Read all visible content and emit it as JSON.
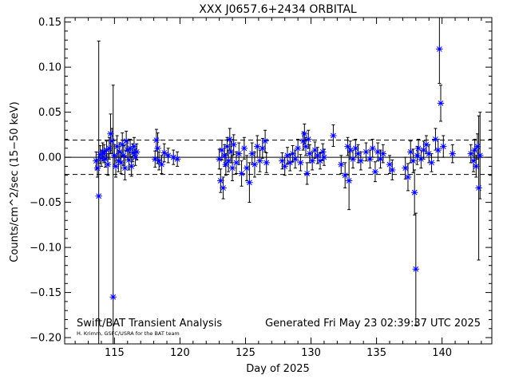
{
  "chart_data": {
    "type": "scatter",
    "title": "XXX J0657.6+2434 ORBITAL",
    "xlabel": "Day of 2025",
    "ylabel": "Counts/cm^2/sec (15−50 keV)",
    "xlim": [
      111.2,
      143.8
    ],
    "ylim": [
      -0.207,
      0.155
    ],
    "x_ticks": [
      115,
      120,
      125,
      130,
      135,
      140
    ],
    "y_ticks": [
      -0.2,
      -0.15,
      -0.1,
      -0.05,
      0.0,
      0.05,
      0.1,
      0.15
    ],
    "y_tick_labels": [
      "−0.20",
      "−0.15",
      "−0.10",
      "−0.05",
      "0.00",
      "0.05",
      "0.10",
      "0.15"
    ],
    "reference_lines": [
      {
        "y": 0.0,
        "style": "solid"
      },
      {
        "y": 0.019,
        "style": "dashed"
      },
      {
        "y": -0.019,
        "style": "dashed"
      }
    ],
    "marker": "asterisk",
    "marker_color": "#0000ff",
    "grid": false,
    "footer_left": "Swift/BAT Transient Analysis",
    "footer_left_small": "H. Krimm, GSFC/USRA for the BAT team",
    "footer_right": "Generated Fri May 23 02:39:37 UTC 2025",
    "points": [
      {
        "x": 113.6,
        "y": -0.004,
        "err": 0.01
      },
      {
        "x": 113.7,
        "y": -0.012,
        "err": 0.01
      },
      {
        "x": 113.8,
        "y": -0.043,
        "err": 0.172
      },
      {
        "x": 113.9,
        "y": 0.003,
        "err": 0.01
      },
      {
        "x": 114.0,
        "y": -0.001,
        "err": 0.009
      },
      {
        "x": 114.1,
        "y": 0.006,
        "err": 0.01
      },
      {
        "x": 114.2,
        "y": 0.004,
        "err": 0.01
      },
      {
        "x": 114.3,
        "y": -0.002,
        "err": 0.009
      },
      {
        "x": 114.4,
        "y": 0.008,
        "err": 0.01
      },
      {
        "x": 114.5,
        "y": -0.008,
        "err": 0.012
      },
      {
        "x": 114.6,
        "y": 0.01,
        "err": 0.012
      },
      {
        "x": 114.7,
        "y": 0.026,
        "err": 0.022
      },
      {
        "x": 114.8,
        "y": 0.018,
        "err": 0.014
      },
      {
        "x": 114.9,
        "y": -0.155,
        "err": 0.235
      },
      {
        "x": 115.0,
        "y": 0.002,
        "err": 0.012
      },
      {
        "x": 115.1,
        "y": -0.01,
        "err": 0.012
      },
      {
        "x": 115.2,
        "y": 0.012,
        "err": 0.012
      },
      {
        "x": 115.3,
        "y": -0.004,
        "err": 0.012
      },
      {
        "x": 115.4,
        "y": 0.006,
        "err": 0.01
      },
      {
        "x": 115.5,
        "y": -0.006,
        "err": 0.012
      },
      {
        "x": 115.6,
        "y": 0.014,
        "err": 0.013
      },
      {
        "x": 115.7,
        "y": 0.002,
        "err": 0.011
      },
      {
        "x": 115.8,
        "y": -0.012,
        "err": 0.013
      },
      {
        "x": 115.9,
        "y": 0.018,
        "err": 0.011
      },
      {
        "x": 116.0,
        "y": 0.008,
        "err": 0.011
      },
      {
        "x": 116.1,
        "y": -0.003,
        "err": 0.011
      },
      {
        "x": 116.2,
        "y": 0.01,
        "err": 0.01
      },
      {
        "x": 116.3,
        "y": -0.01,
        "err": 0.011
      },
      {
        "x": 116.4,
        "y": 0.005,
        "err": 0.01
      },
      {
        "x": 116.5,
        "y": 0.012,
        "err": 0.01
      },
      {
        "x": 116.6,
        "y": 0.0,
        "err": 0.009
      },
      {
        "x": 116.7,
        "y": 0.006,
        "err": 0.009
      },
      {
        "x": 118.1,
        "y": -0.002,
        "err": 0.009
      },
      {
        "x": 118.2,
        "y": 0.019,
        "err": 0.012
      },
      {
        "x": 118.3,
        "y": 0.01,
        "err": 0.017
      },
      {
        "x": 118.4,
        "y": -0.004,
        "err": 0.01
      },
      {
        "x": 118.6,
        "y": -0.008,
        "err": 0.01
      },
      {
        "x": 118.8,
        "y": 0.005,
        "err": 0.01
      },
      {
        "x": 119.1,
        "y": 0.002,
        "err": 0.008
      },
      {
        "x": 119.5,
        "y": 0.0,
        "err": 0.008
      },
      {
        "x": 119.8,
        "y": -0.002,
        "err": 0.008
      },
      {
        "x": 123.0,
        "y": -0.002,
        "err": 0.011
      },
      {
        "x": 123.1,
        "y": -0.026,
        "err": 0.013
      },
      {
        "x": 123.2,
        "y": 0.008,
        "err": 0.011
      },
      {
        "x": 123.3,
        "y": -0.034,
        "err": 0.012
      },
      {
        "x": 123.4,
        "y": 0.002,
        "err": 0.012
      },
      {
        "x": 123.5,
        "y": -0.008,
        "err": 0.012
      },
      {
        "x": 123.6,
        "y": 0.012,
        "err": 0.01
      },
      {
        "x": 123.7,
        "y": -0.004,
        "err": 0.012
      },
      {
        "x": 123.8,
        "y": 0.02,
        "err": 0.012
      },
      {
        "x": 123.9,
        "y": 0.006,
        "err": 0.012
      },
      {
        "x": 124.0,
        "y": -0.012,
        "err": 0.014
      },
      {
        "x": 124.1,
        "y": 0.014,
        "err": 0.011
      },
      {
        "x": 124.3,
        "y": -0.006,
        "err": 0.012
      },
      {
        "x": 124.5,
        "y": 0.004,
        "err": 0.012
      },
      {
        "x": 124.7,
        "y": -0.018,
        "err": 0.014
      },
      {
        "x": 124.9,
        "y": 0.01,
        "err": 0.012
      },
      {
        "x": 125.1,
        "y": -0.012,
        "err": 0.014
      },
      {
        "x": 125.3,
        "y": -0.028,
        "err": 0.022
      },
      {
        "x": 125.5,
        "y": 0.004,
        "err": 0.012
      },
      {
        "x": 125.7,
        "y": -0.008,
        "err": 0.014
      },
      {
        "x": 125.9,
        "y": 0.012,
        "err": 0.012
      },
      {
        "x": 126.1,
        "y": -0.004,
        "err": 0.012
      },
      {
        "x": 126.3,
        "y": 0.01,
        "err": 0.011
      },
      {
        "x": 126.5,
        "y": 0.018,
        "err": 0.012
      },
      {
        "x": 126.6,
        "y": -0.006,
        "err": 0.011
      },
      {
        "x": 127.8,
        "y": -0.004,
        "err": 0.009
      },
      {
        "x": 128.0,
        "y": -0.01,
        "err": 0.01
      },
      {
        "x": 128.2,
        "y": 0.002,
        "err": 0.009
      },
      {
        "x": 128.4,
        "y": -0.006,
        "err": 0.009
      },
      {
        "x": 128.6,
        "y": 0.004,
        "err": 0.009
      },
      {
        "x": 128.8,
        "y": -0.002,
        "err": 0.01
      },
      {
        "x": 129.0,
        "y": 0.01,
        "err": 0.01
      },
      {
        "x": 129.2,
        "y": -0.006,
        "err": 0.009
      },
      {
        "x": 129.4,
        "y": 0.018,
        "err": 0.01
      },
      {
        "x": 129.5,
        "y": 0.026,
        "err": 0.011
      },
      {
        "x": 129.6,
        "y": 0.012,
        "err": 0.01
      },
      {
        "x": 129.7,
        "y": -0.018,
        "err": 0.012
      },
      {
        "x": 129.8,
        "y": 0.02,
        "err": 0.01
      },
      {
        "x": 129.9,
        "y": 0.004,
        "err": 0.01
      },
      {
        "x": 130.1,
        "y": -0.004,
        "err": 0.01
      },
      {
        "x": 130.3,
        "y": 0.008,
        "err": 0.009
      },
      {
        "x": 130.5,
        "y": 0.002,
        "err": 0.009
      },
      {
        "x": 130.7,
        "y": -0.004,
        "err": 0.009
      },
      {
        "x": 130.9,
        "y": 0.006,
        "err": 0.009
      },
      {
        "x": 131.0,
        "y": 0.0,
        "err": 0.009
      },
      {
        "x": 131.7,
        "y": 0.024,
        "err": 0.012
      },
      {
        "x": 132.3,
        "y": -0.008,
        "err": 0.01
      },
      {
        "x": 132.6,
        "y": -0.02,
        "err": 0.014
      },
      {
        "x": 132.8,
        "y": 0.012,
        "err": 0.01
      },
      {
        "x": 132.9,
        "y": -0.026,
        "err": 0.032
      },
      {
        "x": 133.0,
        "y": 0.008,
        "err": 0.01
      },
      {
        "x": 133.2,
        "y": -0.002,
        "err": 0.01
      },
      {
        "x": 133.4,
        "y": 0.01,
        "err": 0.01
      },
      {
        "x": 133.6,
        "y": 0.004,
        "err": 0.01
      },
      {
        "x": 133.8,
        "y": -0.004,
        "err": 0.01
      },
      {
        "x": 134.2,
        "y": 0.006,
        "err": 0.01
      },
      {
        "x": 134.5,
        "y": -0.002,
        "err": 0.01
      },
      {
        "x": 134.7,
        "y": 0.01,
        "err": 0.01
      },
      {
        "x": 134.9,
        "y": -0.016,
        "err": 0.011
      },
      {
        "x": 135.1,
        "y": 0.006,
        "err": 0.01
      },
      {
        "x": 135.3,
        "y": -0.002,
        "err": 0.01
      },
      {
        "x": 135.5,
        "y": 0.004,
        "err": 0.01
      },
      {
        "x": 136.0,
        "y": -0.008,
        "err": 0.01
      },
      {
        "x": 136.2,
        "y": -0.014,
        "err": 0.011
      },
      {
        "x": 137.2,
        "y": -0.012,
        "err": 0.012
      },
      {
        "x": 137.4,
        "y": -0.022,
        "err": 0.015
      },
      {
        "x": 137.6,
        "y": 0.006,
        "err": 0.012
      },
      {
        "x": 137.8,
        "y": -0.004,
        "err": 0.013
      },
      {
        "x": 137.9,
        "y": -0.039,
        "err": 0.025
      },
      {
        "x": 138.0,
        "y": -0.124,
        "err": 0.062
      },
      {
        "x": 138.1,
        "y": 0.002,
        "err": 0.01
      },
      {
        "x": 138.2,
        "y": 0.01,
        "err": 0.01
      },
      {
        "x": 138.4,
        "y": -0.002,
        "err": 0.01
      },
      {
        "x": 138.6,
        "y": 0.008,
        "err": 0.01
      },
      {
        "x": 138.8,
        "y": 0.014,
        "err": 0.01
      },
      {
        "x": 139.0,
        "y": 0.004,
        "err": 0.01
      },
      {
        "x": 139.2,
        "y": -0.006,
        "err": 0.01
      },
      {
        "x": 139.5,
        "y": 0.02,
        "err": 0.012
      },
      {
        "x": 139.7,
        "y": 0.008,
        "err": 0.012
      },
      {
        "x": 139.8,
        "y": 0.12,
        "err": 0.038
      },
      {
        "x": 139.9,
        "y": 0.06,
        "err": 0.02
      },
      {
        "x": 140.1,
        "y": 0.012,
        "err": 0.012
      },
      {
        "x": 140.8,
        "y": 0.004,
        "err": 0.01
      },
      {
        "x": 142.2,
        "y": 0.004,
        "err": 0.01
      },
      {
        "x": 142.4,
        "y": -0.004,
        "err": 0.012
      },
      {
        "x": 142.5,
        "y": 0.008,
        "err": 0.012
      },
      {
        "x": 142.6,
        "y": -0.01,
        "err": 0.012
      },
      {
        "x": 142.7,
        "y": 0.012,
        "err": 0.014
      },
      {
        "x": 142.8,
        "y": -0.034,
        "err": 0.08
      },
      {
        "x": 142.9,
        "y": 0.002,
        "err": 0.048
      }
    ]
  }
}
